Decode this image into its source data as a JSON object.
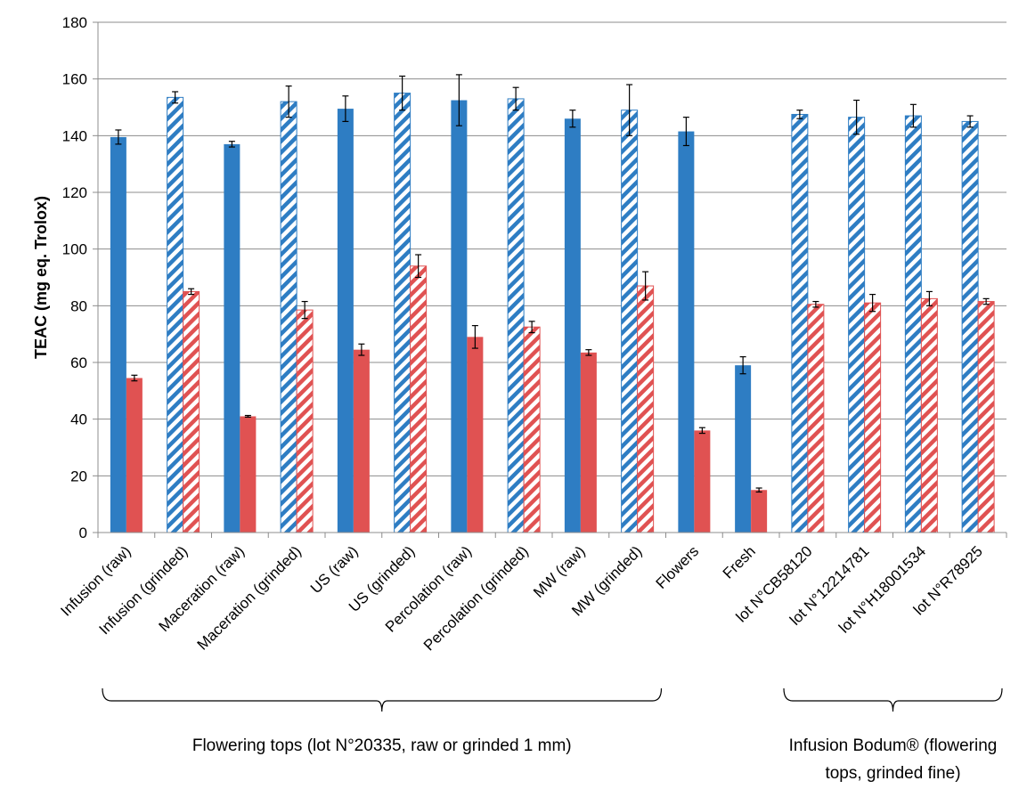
{
  "chart_data": {
    "type": "bar",
    "ylabel": "TEAC (mg eq. Trolox)",
    "ylim": [
      0,
      180
    ],
    "yticks": [
      0,
      20,
      40,
      60,
      80,
      100,
      120,
      140,
      160,
      180
    ],
    "grid": true,
    "legend": "none",
    "colors": {
      "blue": "#2E7DC3",
      "red": "#E05252"
    },
    "categories": [
      "Infusion (raw)",
      "Infusion (grinded)",
      "Maceration (raw)",
      "Maceration (grinded)",
      "US (raw)",
      "US (grinded)",
      "Percolation (raw)",
      "Percolation (grinded)",
      "MW (raw)",
      "MW (grinded)",
      "Flowers",
      "Fresh",
      "lot N°CB58120",
      "lot N°12214781",
      "lot N°H18001534",
      "lot N°R78925"
    ],
    "pattern": [
      "solid",
      "hatched",
      "solid",
      "hatched",
      "solid",
      "hatched",
      "solid",
      "hatched",
      "solid",
      "hatched",
      "solid",
      "solid",
      "hatched",
      "hatched",
      "hatched",
      "hatched"
    ],
    "series": [
      {
        "color": "blue",
        "values": [
          139.5,
          153.5,
          137,
          152,
          149.5,
          155,
          152.5,
          153,
          146,
          149,
          141.5,
          59,
          147.5,
          146.5,
          147,
          145
        ],
        "errors": [
          2.5,
          2,
          1,
          5.5,
          4.5,
          6,
          9,
          4,
          3,
          9,
          5,
          3,
          1.5,
          6,
          4,
          2
        ]
      },
      {
        "color": "red",
        "values": [
          54.5,
          85,
          41,
          78.5,
          64.5,
          94,
          69,
          72.5,
          63.5,
          87,
          36,
          15,
          80.5,
          81,
          82.5,
          81.5
        ],
        "errors": [
          1,
          1,
          0.3,
          3,
          2,
          4,
          4,
          2,
          1,
          5,
          1,
          0.7,
          1,
          3,
          2.5,
          1
        ]
      }
    ],
    "groups": [
      {
        "label": "Flowering tops (lot N°20335,  raw or grinded 1 mm)",
        "from": 0,
        "to": 9
      },
      {
        "label_lines": [
          "Infusion Bodum® (flowering",
          "tops, grinded fine)"
        ],
        "from": 12,
        "to": 15
      }
    ]
  }
}
